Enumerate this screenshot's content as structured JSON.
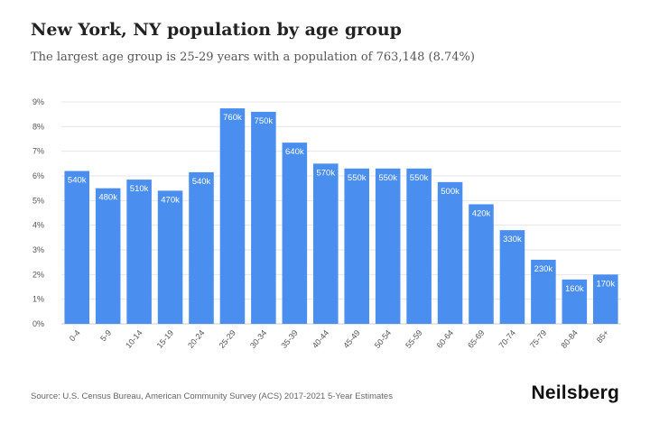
{
  "title": "New York, NY population by age group",
  "subtitle": "The largest age group is 25-29 years with a population of 763,148 (8.74%)",
  "source": "Source: U.S. Census Bureau, American Community Survey (ACS) 2017-2021 5-Year Estimates",
  "brand": "Neilsberg",
  "colors": {
    "bar": "#4a8ef0",
    "grid": "#e6e6e6",
    "axis": "#cccccc"
  },
  "chart_data": {
    "type": "bar",
    "categories": [
      "0-4",
      "5-9",
      "10-14",
      "15-19",
      "20-24",
      "25-29",
      "30-34",
      "35-39",
      "40-44",
      "45-49",
      "50-54",
      "55-59",
      "60-64",
      "65-69",
      "70-74",
      "75-79",
      "80-84",
      "85+"
    ],
    "values": [
      6.2,
      5.5,
      5.85,
      5.4,
      6.15,
      8.74,
      8.6,
      7.35,
      6.5,
      6.3,
      6.3,
      6.3,
      5.75,
      4.85,
      3.8,
      2.6,
      1.8,
      2.0
    ],
    "data_labels": [
      "540k",
      "480k",
      "510k",
      "470k",
      "540k",
      "760k",
      "750k",
      "640k",
      "570k",
      "550k",
      "550k",
      "550k",
      "500k",
      "420k",
      "330k",
      "230k",
      "160k",
      "170k"
    ],
    "y_ticks": [
      "0%",
      "1%",
      "2%",
      "3%",
      "4%",
      "5%",
      "6%",
      "7%",
      "8%",
      "9%"
    ],
    "ylim": [
      0,
      9
    ],
    "grid": true
  }
}
